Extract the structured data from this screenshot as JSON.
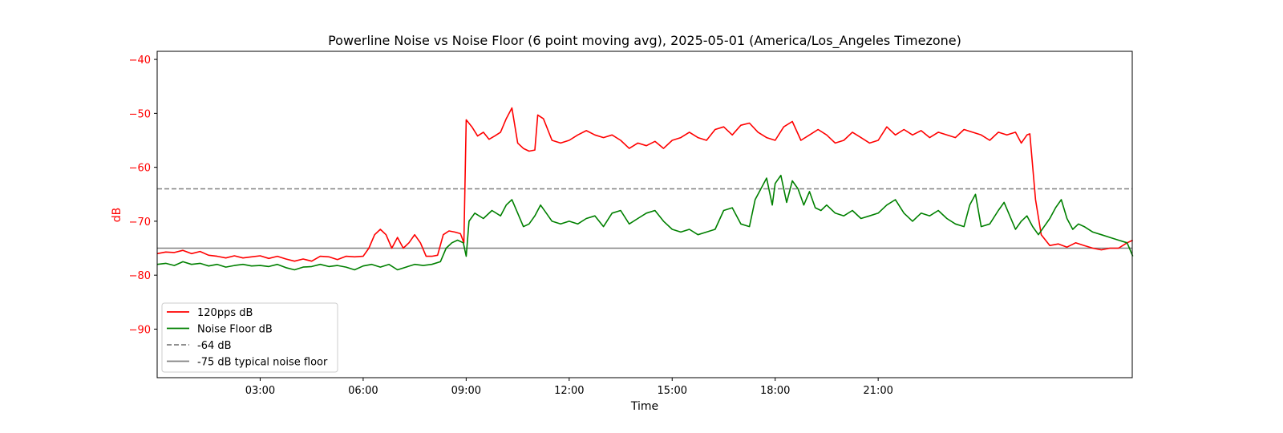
{
  "chart_data": {
    "type": "line",
    "title": "Powerline Noise vs Noise Floor (6 point moving avg), 2025-05-01 (America/Los_Angeles Timezone)",
    "xlabel": "Time",
    "ylabel": "dB",
    "x_ticks": [
      "03:00",
      "06:00",
      "09:00",
      "12:00",
      "15:00",
      "18:00",
      "21:00"
    ],
    "y_ticks": [
      "−40",
      "−50",
      "−60",
      "−70",
      "−80",
      "−90"
    ],
    "x_range": [
      "00:00",
      "24:00"
    ],
    "ylim": [
      -99,
      -38.5
    ],
    "grid": false,
    "legend_position": "lower-left",
    "series": [
      {
        "name": "120pps dB",
        "color": "#ff0000",
        "style": "solid",
        "points": [
          [
            "00:00",
            -76.0
          ],
          [
            "00:15",
            -75.7
          ],
          [
            "00:30",
            -75.8
          ],
          [
            "00:45",
            -75.4
          ],
          [
            "01:00",
            -76.0
          ],
          [
            "01:15",
            -75.6
          ],
          [
            "01:30",
            -76.3
          ],
          [
            "01:45",
            -76.5
          ],
          [
            "02:00",
            -76.8
          ],
          [
            "02:15",
            -76.4
          ],
          [
            "02:30",
            -76.8
          ],
          [
            "02:45",
            -76.6
          ],
          [
            "03:00",
            -76.4
          ],
          [
            "03:15",
            -76.9
          ],
          [
            "03:30",
            -76.5
          ],
          [
            "03:45",
            -77.0
          ],
          [
            "04:00",
            -77.4
          ],
          [
            "04:15",
            -77.0
          ],
          [
            "04:30",
            -77.4
          ],
          [
            "04:45",
            -76.5
          ],
          [
            "05:00",
            -76.6
          ],
          [
            "05:15",
            -77.1
          ],
          [
            "05:30",
            -76.5
          ],
          [
            "05:45",
            -76.6
          ],
          [
            "06:00",
            -76.5
          ],
          [
            "06:10",
            -75.0
          ],
          [
            "06:20",
            -72.5
          ],
          [
            "06:30",
            -71.5
          ],
          [
            "06:40",
            -72.5
          ],
          [
            "06:50",
            -75.0
          ],
          [
            "07:00",
            -73.0
          ],
          [
            "07:10",
            -75.0
          ],
          [
            "07:20",
            -74.0
          ],
          [
            "07:30",
            -72.5
          ],
          [
            "07:40",
            -74.0
          ],
          [
            "07:50",
            -76.5
          ],
          [
            "08:00",
            -76.5
          ],
          [
            "08:10",
            -76.3
          ],
          [
            "08:20",
            -72.5
          ],
          [
            "08:30",
            -71.8
          ],
          [
            "08:40",
            -72.0
          ],
          [
            "08:50",
            -72.3
          ],
          [
            "08:56",
            -74.0
          ],
          [
            "09:00",
            -51.2
          ],
          [
            "09:10",
            -52.5
          ],
          [
            "09:20",
            -54.2
          ],
          [
            "09:30",
            -53.5
          ],
          [
            "09:40",
            -54.8
          ],
          [
            "09:50",
            -54.2
          ],
          [
            "10:00",
            -53.5
          ],
          [
            "10:10",
            -51.0
          ],
          [
            "10:20",
            -49.0
          ],
          [
            "10:30",
            -55.5
          ],
          [
            "10:40",
            -56.5
          ],
          [
            "10:50",
            -57.0
          ],
          [
            "11:00",
            -56.8
          ],
          [
            "11:05",
            -50.3
          ],
          [
            "11:15",
            -51.0
          ],
          [
            "11:30",
            -55.0
          ],
          [
            "11:45",
            -55.5
          ],
          [
            "12:00",
            -55.0
          ],
          [
            "12:15",
            -54.0
          ],
          [
            "12:30",
            -53.2
          ],
          [
            "12:45",
            -54.0
          ],
          [
            "13:00",
            -54.5
          ],
          [
            "13:15",
            -54.0
          ],
          [
            "13:30",
            -55.0
          ],
          [
            "13:45",
            -56.5
          ],
          [
            "14:00",
            -55.5
          ],
          [
            "14:15",
            -56.0
          ],
          [
            "14:30",
            -55.2
          ],
          [
            "14:45",
            -56.5
          ],
          [
            "15:00",
            -55.0
          ],
          [
            "15:15",
            -54.5
          ],
          [
            "15:30",
            -53.5
          ],
          [
            "15:45",
            -54.5
          ],
          [
            "16:00",
            -55.0
          ],
          [
            "16:15",
            -53.0
          ],
          [
            "16:30",
            -52.5
          ],
          [
            "16:45",
            -54.0
          ],
          [
            "17:00",
            -52.2
          ],
          [
            "17:15",
            -51.8
          ],
          [
            "17:30",
            -53.5
          ],
          [
            "17:45",
            -54.5
          ],
          [
            "18:00",
            -55.0
          ],
          [
            "18:15",
            -52.5
          ],
          [
            "18:30",
            -51.5
          ],
          [
            "18:45",
            -55.0
          ],
          [
            "19:00",
            -54.0
          ],
          [
            "19:15",
            -53.0
          ],
          [
            "19:30",
            -54.0
          ],
          [
            "19:45",
            -55.5
          ],
          [
            "20:00",
            -55.0
          ],
          [
            "20:15",
            -53.5
          ],
          [
            "20:30",
            -54.5
          ],
          [
            "20:45",
            -55.5
          ],
          [
            "21:00",
            -55.0
          ],
          [
            "21:15",
            -52.5
          ],
          [
            "21:30",
            -54.0
          ],
          [
            "21:45",
            -53.0
          ],
          [
            "22:00",
            -54.0
          ],
          [
            "22:15",
            -53.2
          ],
          [
            "22:30",
            -54.5
          ],
          [
            "22:45",
            -53.5
          ],
          [
            "23:00",
            -54.0
          ],
          [
            "23:15",
            -54.5
          ],
          [
            "23:30",
            -53.0
          ],
          [
            "23:45",
            -53.5
          ],
          [
            "24:00",
            -54.0
          ],
          [
            "24:15",
            -55.0
          ],
          [
            "24:30",
            -53.5
          ],
          [
            "24:45",
            -54.0
          ],
          [
            "25:00",
            -53.5
          ],
          [
            "25:10",
            -55.5
          ],
          [
            "25:20",
            -54.0
          ],
          [
            "25:25",
            -53.8
          ],
          [
            "25:35",
            -66.0
          ],
          [
            "25:45",
            -72.5
          ],
          [
            "26:00",
            -74.5
          ],
          [
            "26:15",
            -74.2
          ],
          [
            "26:30",
            -74.8
          ],
          [
            "26:45",
            -74.0
          ],
          [
            "27:00",
            -74.5
          ],
          [
            "27:15",
            -75.0
          ],
          [
            "27:30",
            -75.3
          ],
          [
            "27:45",
            -75.0
          ],
          [
            "28:00",
            -75.0
          ],
          [
            "28:15",
            -74.0
          ],
          [
            "28:25",
            -73.5
          ]
        ]
      },
      {
        "name": "Noise Floor dB",
        "color": "#008000",
        "style": "solid",
        "points": [
          [
            "00:00",
            -78.0
          ],
          [
            "00:15",
            -77.8
          ],
          [
            "00:30",
            -78.2
          ],
          [
            "00:45",
            -77.5
          ],
          [
            "01:00",
            -78.0
          ],
          [
            "01:15",
            -77.8
          ],
          [
            "01:30",
            -78.3
          ],
          [
            "01:45",
            -78.0
          ],
          [
            "02:00",
            -78.5
          ],
          [
            "02:15",
            -78.2
          ],
          [
            "02:30",
            -78.0
          ],
          [
            "02:45",
            -78.3
          ],
          [
            "03:00",
            -78.2
          ],
          [
            "03:15",
            -78.4
          ],
          [
            "03:30",
            -78.0
          ],
          [
            "03:45",
            -78.6
          ],
          [
            "04:00",
            -79.0
          ],
          [
            "04:15",
            -78.5
          ],
          [
            "04:30",
            -78.4
          ],
          [
            "04:45",
            -78.0
          ],
          [
            "05:00",
            -78.4
          ],
          [
            "05:15",
            -78.2
          ],
          [
            "05:30",
            -78.5
          ],
          [
            "05:45",
            -79.0
          ],
          [
            "06:00",
            -78.3
          ],
          [
            "06:15",
            -78.0
          ],
          [
            "06:30",
            -78.5
          ],
          [
            "06:45",
            -78.0
          ],
          [
            "07:00",
            -79.0
          ],
          [
            "07:15",
            -78.5
          ],
          [
            "07:30",
            -78.0
          ],
          [
            "07:45",
            -78.2
          ],
          [
            "08:00",
            -78.0
          ],
          [
            "08:15",
            -77.5
          ],
          [
            "08:25",
            -75.0
          ],
          [
            "08:35",
            -74.0
          ],
          [
            "08:45",
            -73.5
          ],
          [
            "08:55",
            -74.0
          ],
          [
            "09:00",
            -76.5
          ],
          [
            "09:05",
            -70.0
          ],
          [
            "09:15",
            -68.5
          ],
          [
            "09:30",
            -69.5
          ],
          [
            "09:45",
            -68.0
          ],
          [
            "10:00",
            -69.0
          ],
          [
            "10:10",
            -67.0
          ],
          [
            "10:20",
            -66.0
          ],
          [
            "10:30",
            -68.5
          ],
          [
            "10:40",
            -71.0
          ],
          [
            "10:50",
            -70.5
          ],
          [
            "11:00",
            -69.0
          ],
          [
            "11:10",
            -67.0
          ],
          [
            "11:20",
            -68.5
          ],
          [
            "11:30",
            -70.0
          ],
          [
            "11:45",
            -70.5
          ],
          [
            "12:00",
            -70.0
          ],
          [
            "12:15",
            -70.5
          ],
          [
            "12:30",
            -69.5
          ],
          [
            "12:45",
            -69.0
          ],
          [
            "13:00",
            -71.0
          ],
          [
            "13:15",
            -68.5
          ],
          [
            "13:30",
            -68.0
          ],
          [
            "13:45",
            -70.5
          ],
          [
            "14:00",
            -69.5
          ],
          [
            "14:15",
            -68.5
          ],
          [
            "14:30",
            -68.0
          ],
          [
            "14:45",
            -70.0
          ],
          [
            "15:00",
            -71.5
          ],
          [
            "15:15",
            -72.0
          ],
          [
            "15:30",
            -71.5
          ],
          [
            "15:45",
            -72.5
          ],
          [
            "16:00",
            -72.0
          ],
          [
            "16:15",
            -71.5
          ],
          [
            "16:30",
            -68.0
          ],
          [
            "16:45",
            -67.5
          ],
          [
            "17:00",
            -70.5
          ],
          [
            "17:15",
            -71.0
          ],
          [
            "17:25",
            -66.0
          ],
          [
            "17:35",
            -64.0
          ],
          [
            "17:45",
            -62.0
          ],
          [
            "17:55",
            -67.0
          ],
          [
            "18:00",
            -63.0
          ],
          [
            "18:10",
            -61.5
          ],
          [
            "18:20",
            -66.5
          ],
          [
            "18:30",
            -62.5
          ],
          [
            "18:40",
            -64.0
          ],
          [
            "18:50",
            -67.0
          ],
          [
            "19:00",
            -64.5
          ],
          [
            "19:10",
            -67.5
          ],
          [
            "19:20",
            -68.0
          ],
          [
            "19:30",
            -67.0
          ],
          [
            "19:45",
            -68.5
          ],
          [
            "20:00",
            -69.0
          ],
          [
            "20:15",
            -68.0
          ],
          [
            "20:30",
            -69.5
          ],
          [
            "20:45",
            -69.0
          ],
          [
            "21:00",
            -68.5
          ],
          [
            "21:15",
            -67.0
          ],
          [
            "21:30",
            -66.0
          ],
          [
            "21:45",
            -68.5
          ],
          [
            "22:00",
            -70.0
          ],
          [
            "22:15",
            -68.5
          ],
          [
            "22:30",
            -69.0
          ],
          [
            "22:45",
            -68.0
          ],
          [
            "23:00",
            -69.5
          ],
          [
            "23:15",
            -70.5
          ],
          [
            "23:30",
            -71.0
          ],
          [
            "23:40",
            -67.0
          ],
          [
            "23:50",
            -65.0
          ],
          [
            "24:00",
            -71.0
          ],
          [
            "24:15",
            -70.5
          ],
          [
            "24:30",
            -68.0
          ],
          [
            "24:40",
            -66.5
          ],
          [
            "24:50",
            -69.0
          ],
          [
            "25:00",
            -71.5
          ],
          [
            "25:10",
            -70.0
          ],
          [
            "25:20",
            -69.0
          ],
          [
            "25:30",
            -71.0
          ],
          [
            "25:40",
            -72.5
          ],
          [
            "25:50",
            -71.0
          ],
          [
            "26:00",
            -69.5
          ],
          [
            "26:10",
            -67.5
          ],
          [
            "26:20",
            -66.0
          ],
          [
            "26:30",
            -69.5
          ],
          [
            "26:40",
            -71.5
          ],
          [
            "26:50",
            -70.5
          ],
          [
            "27:00",
            -71.0
          ],
          [
            "27:15",
            -72.0
          ],
          [
            "27:30",
            -72.5
          ],
          [
            "27:45",
            -73.0
          ],
          [
            "28:00",
            -73.5
          ],
          [
            "28:15",
            -74.0
          ],
          [
            "28:25",
            -76.5
          ]
        ]
      },
      {
        "name": "-64 dB",
        "color": "#808080",
        "style": "dashed",
        "constant": -64
      },
      {
        "name": "-75 dB typical noise floor",
        "color": "#808080",
        "style": "solid",
        "constant": -75
      }
    ]
  }
}
